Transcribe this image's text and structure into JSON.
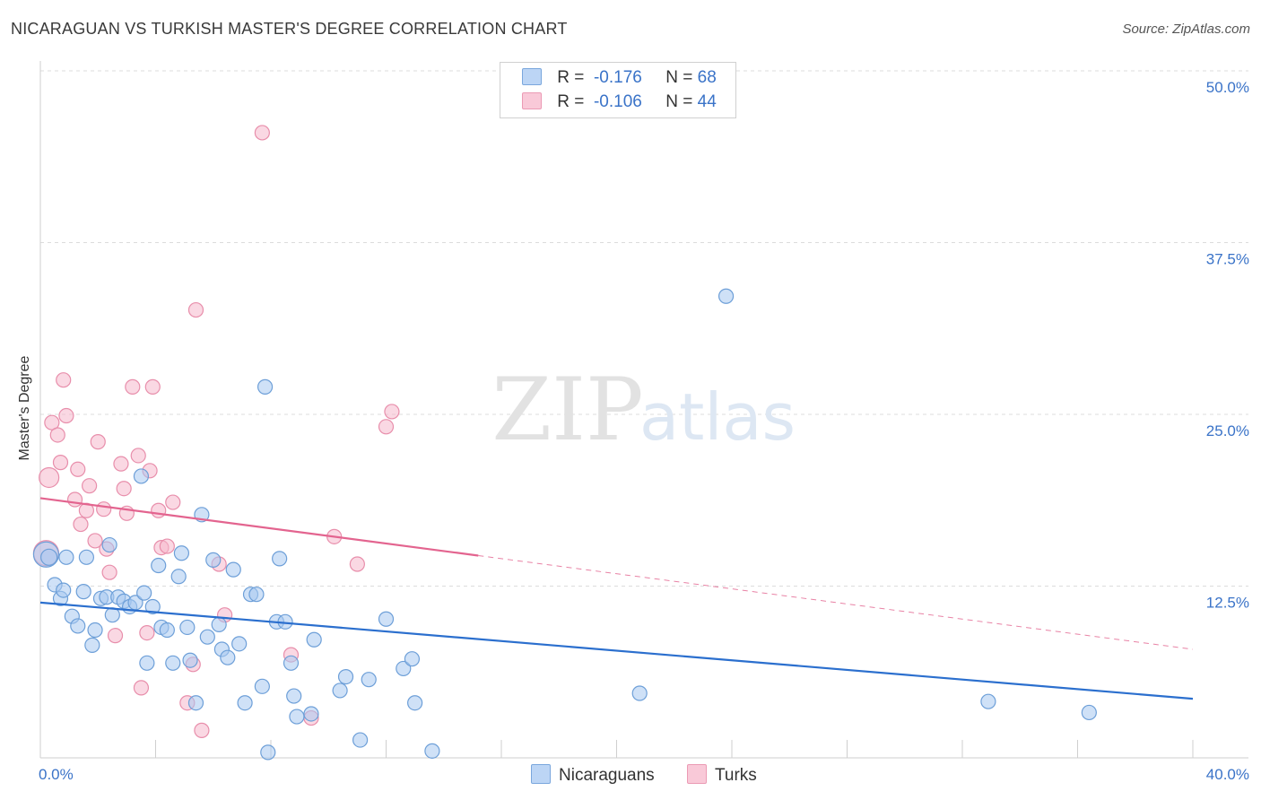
{
  "title": "NICARAGUAN VS TURKISH MASTER'S DEGREE CORRELATION CHART",
  "source": "Source: ZipAtlas.com",
  "watermark": {
    "zip": "ZIP",
    "atlas": "atlas"
  },
  "colors": {
    "blue_fill": "#a8c8f0",
    "blue_stroke": "#6d9fd8",
    "blue_line": "#2b6fce",
    "pink_fill": "#f6b8cc",
    "pink_stroke": "#e88eab",
    "pink_line": "#e3648f",
    "tick_text": "#3a73c8"
  },
  "legend": {
    "rows": [
      {
        "r_label": "R =",
        "r_value": "-0.176",
        "n_label": "N =",
        "n_value": "68"
      },
      {
        "r_label": "R =",
        "r_value": "-0.106",
        "n_label": "N =",
        "n_value": "44"
      }
    ]
  },
  "bottom_legend": {
    "series1": "Nicaraguans",
    "series2": "Turks"
  },
  "chart_data": {
    "type": "scatter",
    "ylabel": "Master's Degree",
    "xlim": [
      0,
      40
    ],
    "ylim": [
      0,
      50
    ],
    "x_tick_labels": [
      "0.0%",
      "40.0%"
    ],
    "y_ticks": [
      12.5,
      25.0,
      37.5,
      50.0
    ],
    "y_tick_labels": [
      "12.5%",
      "25.0%",
      "37.5%",
      "50.0%"
    ],
    "series": [
      {
        "name": "Nicaraguans",
        "r": -0.176,
        "n": 68,
        "trend": {
          "x0": 0,
          "y0": 11.3,
          "x1": 40,
          "y1": 4.3,
          "solid_to": 40
        },
        "points": [
          [
            0.2,
            14.8,
            14
          ],
          [
            0.3,
            14.6,
            9
          ],
          [
            0.5,
            12.6,
            8
          ],
          [
            0.7,
            11.6,
            8
          ],
          [
            0.8,
            12.2,
            8
          ],
          [
            0.9,
            14.6,
            8
          ],
          [
            1.1,
            10.3,
            8
          ],
          [
            1.3,
            9.6,
            8
          ],
          [
            1.5,
            12.1,
            8
          ],
          [
            1.6,
            14.6,
            8
          ],
          [
            1.8,
            8.2,
            8
          ],
          [
            1.9,
            9.3,
            8
          ],
          [
            2.1,
            11.6,
            8
          ],
          [
            2.3,
            11.7,
            8
          ],
          [
            2.4,
            15.5,
            8
          ],
          [
            2.5,
            10.4,
            8
          ],
          [
            2.7,
            11.7,
            8
          ],
          [
            2.9,
            11.4,
            8
          ],
          [
            3.1,
            11.0,
            8
          ],
          [
            3.3,
            11.3,
            8
          ],
          [
            3.5,
            20.5,
            8
          ],
          [
            3.6,
            12.0,
            8
          ],
          [
            3.7,
            6.9,
            8
          ],
          [
            3.9,
            11.0,
            8
          ],
          [
            4.1,
            14.0,
            8
          ],
          [
            4.2,
            9.5,
            8
          ],
          [
            4.4,
            9.3,
            8
          ],
          [
            4.6,
            6.9,
            8
          ],
          [
            4.8,
            13.2,
            8
          ],
          [
            4.9,
            14.9,
            8
          ],
          [
            5.1,
            9.5,
            8
          ],
          [
            5.2,
            7.1,
            8
          ],
          [
            5.4,
            4.0,
            8
          ],
          [
            5.6,
            17.7,
            8
          ],
          [
            5.8,
            8.8,
            8
          ],
          [
            6.0,
            14.4,
            8
          ],
          [
            6.2,
            9.7,
            8
          ],
          [
            6.3,
            7.9,
            8
          ],
          [
            6.5,
            7.3,
            8
          ],
          [
            6.7,
            13.7,
            8
          ],
          [
            6.9,
            8.3,
            8
          ],
          [
            7.1,
            4.0,
            8
          ],
          [
            7.3,
            11.9,
            8
          ],
          [
            7.5,
            11.9,
            8
          ],
          [
            7.7,
            5.2,
            8
          ],
          [
            7.8,
            27.0,
            8
          ],
          [
            7.9,
            0.4,
            8
          ],
          [
            8.2,
            9.9,
            8
          ],
          [
            8.3,
            14.5,
            8
          ],
          [
            8.5,
            9.9,
            8
          ],
          [
            8.7,
            6.9,
            8
          ],
          [
            8.8,
            4.5,
            8
          ],
          [
            8.9,
            3.0,
            8
          ],
          [
            9.4,
            3.2,
            8
          ],
          [
            9.5,
            8.6,
            8
          ],
          [
            10.4,
            4.9,
            8
          ],
          [
            10.6,
            5.9,
            8
          ],
          [
            11.1,
            1.3,
            8
          ],
          [
            11.4,
            5.7,
            8
          ],
          [
            12.0,
            10.1,
            8
          ],
          [
            12.6,
            6.5,
            8
          ],
          [
            12.9,
            7.2,
            8
          ],
          [
            13.0,
            4.0,
            8
          ],
          [
            13.6,
            0.5,
            8
          ],
          [
            20.8,
            4.7,
            8
          ],
          [
            23.8,
            33.6,
            8
          ],
          [
            32.9,
            4.1,
            8
          ],
          [
            36.4,
            3.3,
            8
          ]
        ]
      },
      {
        "name": "Turks",
        "r": -0.106,
        "n": 44,
        "trend": {
          "x0": 0,
          "y0": 18.9,
          "x1": 40,
          "y1": 7.9,
          "solid_to": 15.2
        },
        "points": [
          [
            0.2,
            14.9,
            14
          ],
          [
            0.3,
            20.4,
            11
          ],
          [
            0.4,
            24.4,
            8
          ],
          [
            0.6,
            23.5,
            8
          ],
          [
            0.7,
            21.5,
            8
          ],
          [
            0.8,
            27.5,
            8
          ],
          [
            0.9,
            24.9,
            8
          ],
          [
            1.2,
            18.8,
            8
          ],
          [
            1.3,
            21.0,
            8
          ],
          [
            1.4,
            17.0,
            8
          ],
          [
            1.6,
            18.0,
            8
          ],
          [
            1.7,
            19.8,
            8
          ],
          [
            1.9,
            15.8,
            8
          ],
          [
            2.0,
            23.0,
            8
          ],
          [
            2.2,
            18.1,
            8
          ],
          [
            2.3,
            15.2,
            8
          ],
          [
            2.4,
            13.5,
            8
          ],
          [
            2.6,
            8.9,
            8
          ],
          [
            2.8,
            21.4,
            8
          ],
          [
            2.9,
            19.6,
            8
          ],
          [
            3.0,
            17.8,
            8
          ],
          [
            3.2,
            27.0,
            8
          ],
          [
            3.4,
            22.0,
            8
          ],
          [
            3.5,
            5.1,
            8
          ],
          [
            3.7,
            9.1,
            8
          ],
          [
            3.8,
            20.9,
            8
          ],
          [
            3.9,
            27.0,
            8
          ],
          [
            4.1,
            18.0,
            8
          ],
          [
            4.2,
            15.3,
            8
          ],
          [
            4.4,
            15.4,
            8
          ],
          [
            4.6,
            18.6,
            8
          ],
          [
            5.1,
            4.0,
            8
          ],
          [
            5.3,
            6.8,
            8
          ],
          [
            5.4,
            32.6,
            8
          ],
          [
            5.6,
            2.0,
            8
          ],
          [
            6.2,
            14.1,
            8
          ],
          [
            6.4,
            10.4,
            8
          ],
          [
            7.7,
            45.5,
            8
          ],
          [
            8.7,
            7.5,
            8
          ],
          [
            9.4,
            2.9,
            8
          ],
          [
            10.2,
            16.1,
            8
          ],
          [
            11.0,
            14.1,
            8
          ],
          [
            12.0,
            24.1,
            8
          ],
          [
            12.2,
            25.2,
            8
          ]
        ]
      }
    ]
  }
}
